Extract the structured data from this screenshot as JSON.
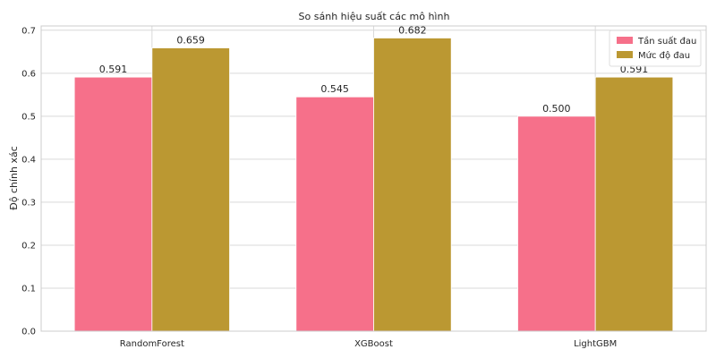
{
  "chart_data": {
    "type": "bar",
    "title": "So sánh hiệu suất các mô hình",
    "xlabel": "",
    "ylabel": "Độ chính xác",
    "categories": [
      "RandomForest",
      "XGBoost",
      "LightGBM"
    ],
    "series": [
      {
        "name": "Tần suất đau",
        "values": [
          0.591,
          0.545,
          0.5
        ],
        "color": "#f6708a"
      },
      {
        "name": "Mức độ đau",
        "values": [
          0.659,
          0.682,
          0.591
        ],
        "color": "#bb9832"
      }
    ],
    "value_labels": [
      [
        "0.591",
        "0.545",
        "0.500"
      ],
      [
        "0.659",
        "0.682",
        "0.591"
      ]
    ],
    "ylim": [
      0,
      0.71
    ],
    "yticks": [
      0.0,
      0.1,
      0.2,
      0.3,
      0.4,
      0.5,
      0.6,
      0.7
    ],
    "ytick_labels": [
      "0.0",
      "0.1",
      "0.2",
      "0.3",
      "0.4",
      "0.5",
      "0.6",
      "0.7"
    ],
    "grid": true,
    "legend_position": "top-right",
    "colors": {
      "grid": "#d9d9d9",
      "frame": "#cccccc",
      "text": "#262626"
    }
  }
}
